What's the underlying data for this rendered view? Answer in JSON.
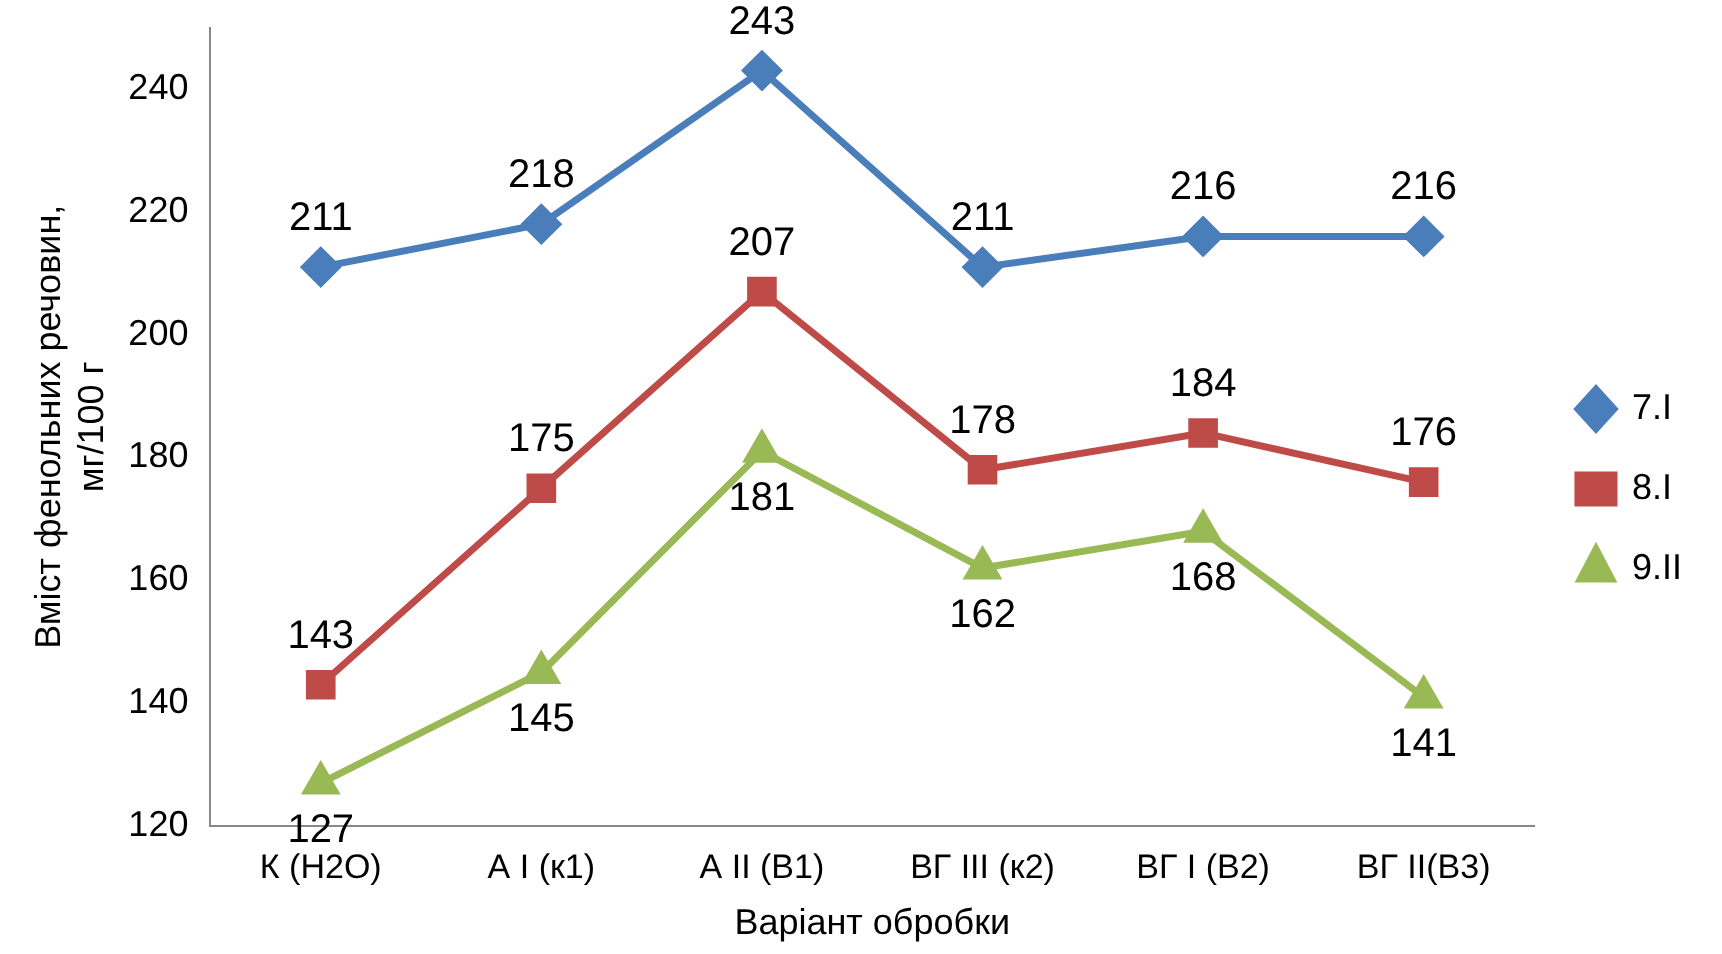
{
  "chart_data": {
    "type": "line",
    "xlabel": "Варіант обробки",
    "ylabel": "Вміст фенольних речовин, мг/100 г",
    "categories": [
      "К (Н2О)",
      "А І (к1)",
      "А ІІ (В1)",
      "ВГ ІІІ (к2)",
      "ВГ І (В2)",
      "ВГ ІІ(В3)"
    ],
    "series": [
      {
        "name": "7.І",
        "color": "#4a7ebb",
        "marker": "diamond",
        "values": [
          211,
          218,
          243,
          211,
          216,
          216
        ]
      },
      {
        "name": "8.І",
        "color": "#be4b48",
        "marker": "square",
        "values": [
          143,
          175,
          207,
          178,
          184,
          176
        ]
      },
      {
        "name": "9.ІІ",
        "color": "#98b954",
        "marker": "triangle",
        "values": [
          127,
          145,
          181,
          162,
          168,
          141
        ]
      }
    ],
    "ylim": [
      120,
      250
    ],
    "yticks": [
      120,
      140,
      160,
      180,
      200,
      220,
      240
    ],
    "grid": false,
    "legend": "right",
    "data_labels": true,
    "line_style": "solid"
  }
}
